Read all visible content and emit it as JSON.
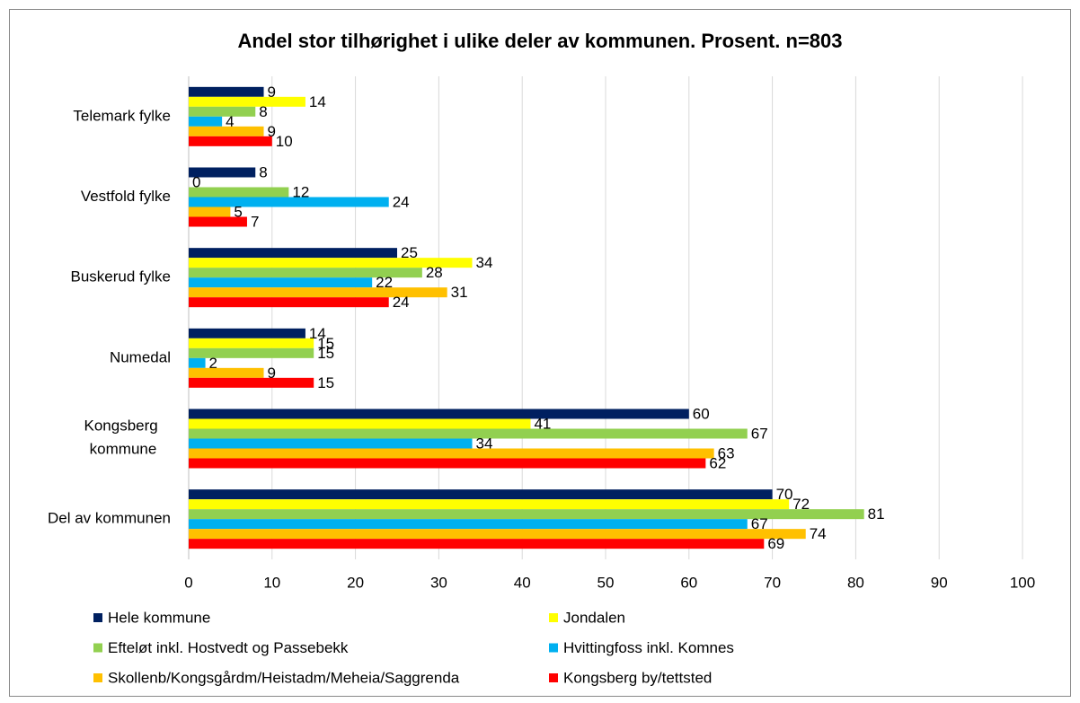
{
  "chart_data": {
    "type": "bar",
    "orientation": "horizontal",
    "title": "Andel stor tilhørighet i ulike deler av kommunen. Prosent. n=803",
    "categories": [
      "Telemark fylke",
      "Vestfold fylke",
      "Buskerud fylke",
      "Numedal",
      "Kongsberg kommune",
      "Del av kommunen"
    ],
    "series": [
      {
        "name": "Hele kommune",
        "color": "#002060",
        "values": [
          9,
          8,
          25,
          14,
          60,
          70
        ]
      },
      {
        "name": "Jondalen",
        "color": "#FFFF00",
        "values": [
          14,
          0,
          34,
          15,
          41,
          72
        ]
      },
      {
        "name": "Efteløt inkl. Hostvedt og Passebekk",
        "color": "#92D050",
        "values": [
          8,
          12,
          28,
          15,
          67,
          81
        ]
      },
      {
        "name": "Hvittingfoss inkl. Komnes",
        "color": "#00B0F0",
        "values": [
          4,
          24,
          22,
          2,
          34,
          67
        ]
      },
      {
        "name": "Skollenb/Kongsgårdm/Heistadm/Meheia/Saggrenda",
        "color": "#FFC000",
        "values": [
          9,
          5,
          31,
          9,
          63,
          74
        ]
      },
      {
        "name": "Kongsberg by/tettsted",
        "color": "#FF0000",
        "values": [
          10,
          7,
          24,
          15,
          62,
          69
        ]
      }
    ],
    "xlim": [
      0,
      100
    ],
    "xticks": [
      0,
      10,
      20,
      30,
      40,
      50,
      60,
      70,
      80,
      90,
      100
    ],
    "grid": true,
    "legend": "bottom"
  }
}
